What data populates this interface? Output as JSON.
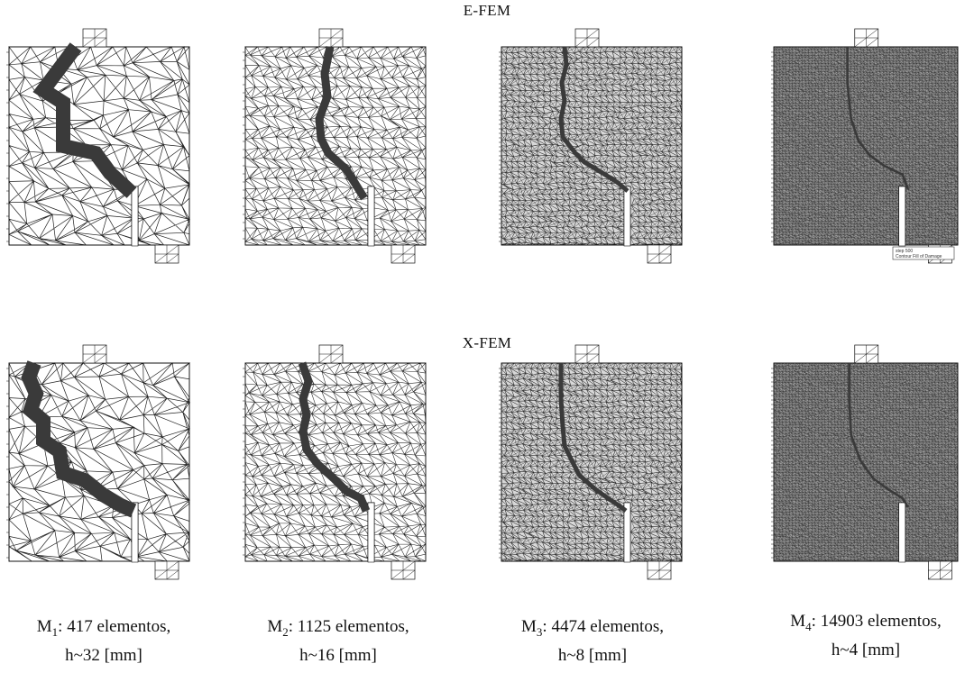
{
  "rows": [
    {
      "id": "efem",
      "title": "E-FEM"
    },
    {
      "id": "xfem",
      "title": "X-FEM"
    }
  ],
  "meshes": [
    {
      "id": "m1",
      "model": "M",
      "index": "1",
      "elements_text": ": 417 elementos,",
      "h_text": "h~32 [mm]",
      "elements": 417,
      "h_mm": 32
    },
    {
      "id": "m2",
      "model": "M",
      "index": "2",
      "elements_text": ": 1125 elementos,",
      "h_text": "h~16 [mm]",
      "elements": 1125,
      "h_mm": 16
    },
    {
      "id": "m3",
      "model": "M",
      "index": "3",
      "elements_text": ": 4474 elementos,",
      "h_text": "h~8 [mm]",
      "elements": 4474,
      "h_mm": 8
    },
    {
      "id": "m4",
      "model": "M",
      "index": "4",
      "elements_text": ": 14903 elementos,",
      "h_text": "h~4 [mm]",
      "elements": 14903,
      "h_mm": 4
    }
  ],
  "legend_box": {
    "line1": "step 500",
    "line2": "Contour Fill of Damage"
  }
}
